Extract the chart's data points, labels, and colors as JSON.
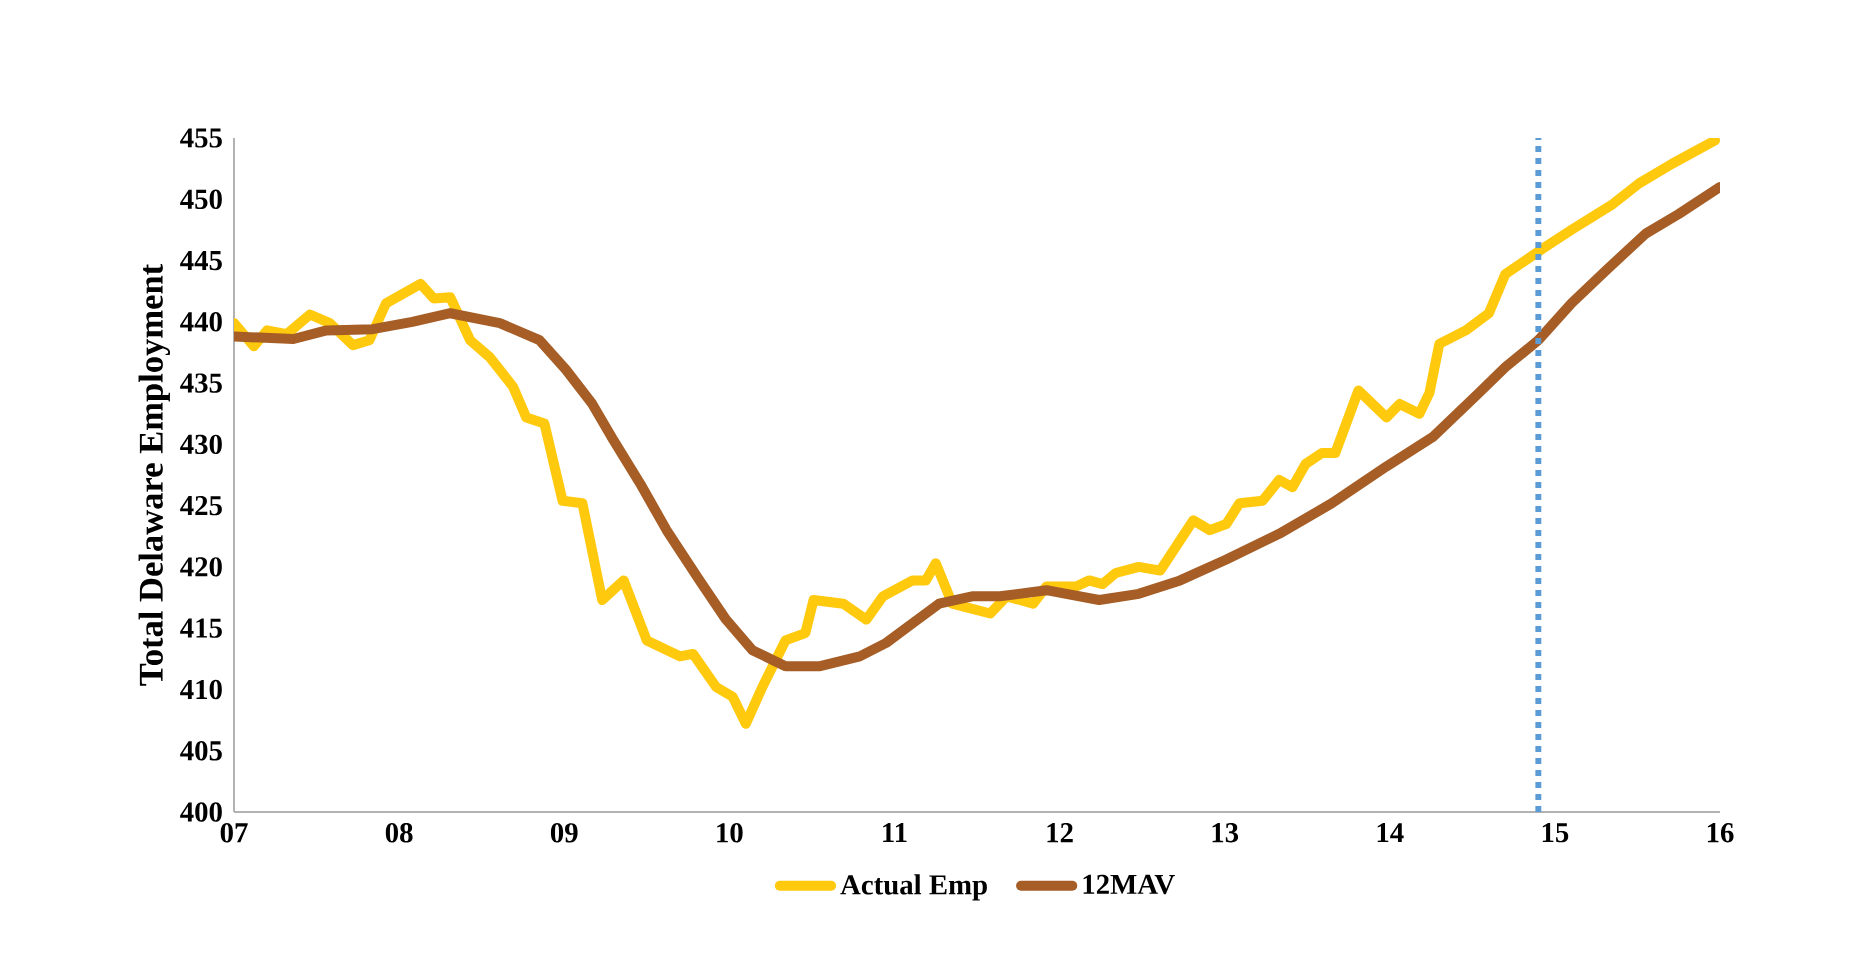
{
  "chart_data": {
    "type": "line",
    "ylabel": "Total Delaware Employment",
    "xlim": [
      7,
      16
    ],
    "ylim": [
      400,
      455
    ],
    "xticks": [
      {
        "value": 7,
        "label": "07"
      },
      {
        "value": 8,
        "label": "08"
      },
      {
        "value": 9,
        "label": "09"
      },
      {
        "value": 10,
        "label": "10"
      },
      {
        "value": 11,
        "label": "11"
      },
      {
        "value": 12,
        "label": "12"
      },
      {
        "value": 13,
        "label": "13"
      },
      {
        "value": 14,
        "label": "14"
      },
      {
        "value": 15,
        "label": "15"
      },
      {
        "value": 16,
        "label": "16"
      }
    ],
    "yticks": [
      400,
      405,
      410,
      415,
      420,
      425,
      430,
      435,
      440,
      445,
      450,
      455
    ],
    "legend": "bottom",
    "grid": false,
    "marker": "none",
    "ref_lines": [
      {
        "axis": "x",
        "value": 14.9,
        "color": "#5b9bd5",
        "line_style": "dotted"
      }
    ],
    "series": [
      {
        "name": "Actual Emp",
        "color": "#ffc90e",
        "x": [
          7.0,
          7.12,
          7.2,
          7.32,
          7.46,
          7.58,
          7.72,
          7.82,
          7.92,
          8.13,
          8.21,
          8.31,
          8.43,
          8.55,
          8.69,
          8.77,
          8.88,
          8.99,
          9.11,
          9.23,
          9.36,
          9.5,
          9.7,
          9.78,
          9.92,
          10.02,
          10.1,
          10.2,
          10.34,
          10.46,
          10.51,
          10.69,
          10.83,
          10.93,
          11.11,
          11.19,
          11.25,
          11.35,
          11.58,
          11.68,
          11.84,
          11.92,
          12.1,
          12.18,
          12.26,
          12.34,
          12.48,
          12.61,
          12.81,
          12.91,
          13.01,
          13.09,
          13.23,
          13.33,
          13.41,
          13.49,
          13.59,
          13.67,
          13.81,
          13.98,
          14.06,
          14.18,
          14.24,
          14.3,
          14.46,
          14.6,
          14.7,
          14.82,
          14.94,
          15.1,
          15.35,
          15.51,
          15.71,
          15.97
        ],
        "values": [
          439.9,
          438.0,
          439.3,
          439.0,
          440.6,
          439.9,
          438.1,
          438.5,
          441.5,
          443.1,
          441.9,
          442.0,
          438.5,
          437.1,
          434.7,
          432.2,
          431.7,
          425.4,
          425.2,
          417.3,
          418.9,
          414.0,
          412.7,
          412.9,
          410.2,
          409.4,
          407.2,
          410.2,
          414.0,
          414.6,
          417.3,
          417.0,
          415.7,
          417.6,
          418.9,
          418.9,
          420.3,
          417.0,
          416.2,
          417.6,
          417.0,
          418.4,
          418.4,
          418.9,
          418.6,
          419.5,
          420.0,
          419.7,
          423.8,
          423.0,
          423.5,
          425.2,
          425.4,
          427.1,
          426.5,
          428.4,
          429.3,
          429.3,
          434.4,
          432.2,
          433.3,
          432.5,
          434.2,
          438.2,
          439.3,
          440.7,
          443.9,
          445.0,
          446.1,
          447.5,
          449.6,
          451.3,
          452.9,
          454.8
        ]
      },
      {
        "name": "12MAV",
        "color": "#a65e26",
        "x": [
          7.0,
          7.36,
          7.56,
          7.84,
          8.08,
          8.31,
          8.61,
          8.85,
          9.01,
          9.17,
          9.3,
          9.46,
          9.62,
          9.82,
          9.98,
          10.14,
          10.34,
          10.55,
          10.79,
          10.95,
          11.11,
          11.27,
          11.47,
          11.64,
          11.92,
          12.24,
          12.48,
          12.73,
          13.01,
          13.33,
          13.65,
          13.98,
          14.26,
          14.54,
          14.7,
          14.9,
          15.1,
          15.31,
          15.55,
          15.75,
          16.0
        ],
        "values": [
          438.8,
          438.6,
          439.3,
          439.4,
          440.0,
          440.7,
          439.9,
          438.5,
          436.1,
          433.3,
          430.3,
          426.8,
          423.0,
          418.9,
          415.7,
          413.2,
          411.9,
          411.9,
          412.7,
          413.8,
          415.4,
          417.0,
          417.6,
          417.6,
          418.1,
          417.3,
          417.8,
          418.9,
          420.6,
          422.7,
          425.2,
          428.2,
          430.6,
          434.2,
          436.3,
          438.5,
          441.5,
          444.2,
          447.2,
          448.8,
          451.0
        ]
      }
    ]
  }
}
